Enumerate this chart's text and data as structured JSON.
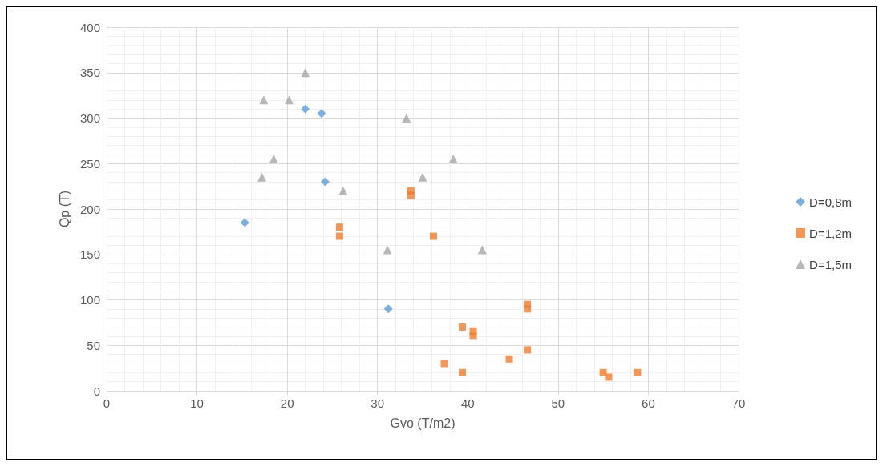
{
  "chart_data": {
    "type": "scatter",
    "xlabel": "Gvo (T/m2)",
    "ylabel": "Qp (T)",
    "xlim": [
      0,
      70
    ],
    "xticks": [
      0,
      10,
      20,
      30,
      40,
      50,
      60,
      70
    ],
    "ylim": [
      0,
      400
    ],
    "yticks": [
      0,
      50,
      100,
      150,
      200,
      250,
      300,
      350,
      400
    ],
    "grid": true,
    "legend": "right",
    "series": [
      {
        "name": "D=0,8m",
        "color": "#5b9bd5",
        "marker": "diamond",
        "x": [
          15.3,
          22,
          23.8,
          24.2,
          31.2
        ],
        "values": [
          185,
          310,
          305,
          230,
          90
        ]
      },
      {
        "name": "D=1,2m",
        "color": "#ed7d31",
        "marker": "square",
        "x": [
          25.8,
          25.8,
          33.7,
          33.7,
          36.2,
          37.4,
          39.4,
          39.4,
          40.6,
          40.6,
          44.6,
          46.6,
          46.6,
          46.6,
          55,
          55.6,
          58.8
        ],
        "values": [
          180,
          170,
          220,
          215,
          170,
          30,
          70,
          20,
          65,
          60,
          35,
          95,
          90,
          45,
          20,
          15,
          20
        ]
      },
      {
        "name": "D=1,5m",
        "color": "#a5a5a5",
        "marker": "triangle",
        "x": [
          17.4,
          20.2,
          22,
          18.5,
          17.2,
          26.2,
          33.2,
          35,
          38.4,
          31.1,
          41.6
        ],
        "values": [
          320,
          320,
          350,
          255,
          235,
          220,
          300,
          235,
          255,
          155,
          155
        ]
      }
    ]
  }
}
